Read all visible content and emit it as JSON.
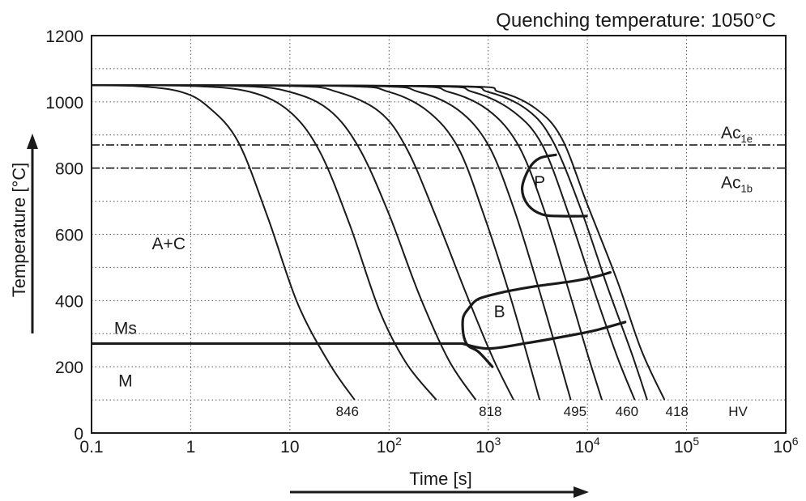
{
  "chart_data": {
    "type": "line",
    "title": "Quenching temperature: 1050°C",
    "xlabel": "Time [s]",
    "ylabel": "Temperature [°C]",
    "x_scale": "log",
    "xlim": [
      0.1,
      1000000
    ],
    "ylim": [
      0,
      1200
    ],
    "x_ticks": [
      {
        "value": 0.1,
        "base": "0.1",
        "exp": ""
      },
      {
        "value": 1,
        "base": "1",
        "exp": ""
      },
      {
        "value": 10,
        "base": "10",
        "exp": ""
      },
      {
        "value": 100,
        "base": "10",
        "exp": "2"
      },
      {
        "value": 1000,
        "base": "10",
        "exp": "3"
      },
      {
        "value": 10000,
        "base": "10",
        "exp": "4"
      },
      {
        "value": 100000,
        "base": "10",
        "exp": "5"
      },
      {
        "value": 1000000,
        "base": "10",
        "exp": "6"
      }
    ],
    "y_ticks": [
      0,
      200,
      400,
      600,
      800,
      1000,
      1200
    ],
    "grid": "dotted",
    "reference_lines": [
      {
        "label": "Ac",
        "sub": "1e",
        "y": 870
      },
      {
        "label": "Ac",
        "sub": "1b",
        "y": 800
      },
      {
        "label": "Ms",
        "sub": "",
        "y": 270
      }
    ],
    "cooling_curves": [
      {
        "points": [
          [
            0.1,
            1050
          ],
          [
            0.3,
            1047
          ],
          [
            0.8,
            1030
          ],
          [
            1.5,
            985
          ],
          [
            3,
            880
          ],
          [
            6,
            650
          ],
          [
            12,
            390
          ],
          [
            25,
            210
          ],
          [
            45,
            100
          ]
        ]
      },
      {
        "points": [
          [
            0.1,
            1050
          ],
          [
            1,
            1048
          ],
          [
            4,
            1030
          ],
          [
            10,
            970
          ],
          [
            20,
            850
          ],
          [
            40,
            630
          ],
          [
            80,
            370
          ],
          [
            150,
            210
          ],
          [
            300,
            100
          ]
        ]
      },
      {
        "points": [
          [
            0.1,
            1050
          ],
          [
            3,
            1048
          ],
          [
            10,
            1030
          ],
          [
            25,
            975
          ],
          [
            50,
            860
          ],
          [
            100,
            660
          ],
          [
            200,
            420
          ],
          [
            400,
            220
          ],
          [
            750,
            100
          ]
        ]
      },
      {
        "points": [
          [
            0.1,
            1050
          ],
          [
            10,
            1048
          ],
          [
            30,
            1030
          ],
          [
            80,
            970
          ],
          [
            150,
            860
          ],
          [
            300,
            650
          ],
          [
            600,
            420
          ],
          [
            1100,
            230
          ],
          [
            1800,
            100
          ]
        ]
      },
      {
        "points": [
          [
            0.1,
            1050
          ],
          [
            30,
            1048
          ],
          [
            100,
            1030
          ],
          [
            250,
            970
          ],
          [
            500,
            860
          ],
          [
            900,
            660
          ],
          [
            1600,
            430
          ],
          [
            2500,
            230
          ],
          [
            3300,
            100
          ]
        ]
      },
      {
        "points": [
          [
            0.1,
            1050
          ],
          [
            60,
            1048
          ],
          [
            200,
            1030
          ],
          [
            500,
            975
          ],
          [
            1000,
            870
          ],
          [
            1800,
            680
          ],
          [
            3200,
            440
          ],
          [
            5000,
            240
          ],
          [
            6800,
            100
          ]
        ]
      },
      {
        "points": [
          [
            0.1,
            1050
          ],
          [
            120,
            1048
          ],
          [
            400,
            1030
          ],
          [
            1000,
            975
          ],
          [
            2000,
            870
          ],
          [
            3600,
            680
          ],
          [
            6500,
            430
          ],
          [
            10000,
            240
          ],
          [
            14000,
            100
          ]
        ]
      },
      {
        "points": [
          [
            0.1,
            1050
          ],
          [
            200,
            1048
          ],
          [
            700,
            1030
          ],
          [
            1800,
            970
          ],
          [
            3500,
            870
          ],
          [
            6500,
            660
          ],
          [
            12000,
            420
          ],
          [
            20000,
            230
          ],
          [
            30000,
            100
          ]
        ]
      },
      {
        "points": [
          [
            0.1,
            1050
          ],
          [
            300,
            1048
          ],
          [
            1000,
            1030
          ],
          [
            2500,
            975
          ],
          [
            4500,
            880
          ],
          [
            8500,
            680
          ],
          [
            16000,
            440
          ],
          [
            28000,
            240
          ],
          [
            40000,
            100
          ]
        ]
      },
      {
        "points": [
          [
            0.1,
            1050
          ],
          [
            400,
            1048
          ],
          [
            1300,
            1030
          ],
          [
            3000,
            980
          ],
          [
            5500,
            890
          ],
          [
            10000,
            690
          ],
          [
            20000,
            460
          ],
          [
            35000,
            250
          ],
          [
            60000,
            100
          ]
        ]
      }
    ],
    "transformation_regions": [
      {
        "label": "P",
        "at": [
          3300,
          740
        ]
      },
      {
        "label": "B",
        "at": [
          1300,
          350
        ]
      }
    ],
    "pearlite_boundary": [
      [
        4800,
        840
      ],
      [
        3300,
        830
      ],
      [
        2600,
        800
      ],
      [
        2200,
        740
      ],
      [
        2500,
        690
      ],
      [
        3500,
        660
      ],
      [
        5500,
        655
      ],
      [
        9800,
        655
      ]
    ],
    "bainite_start": [
      [
        650,
        380
      ],
      [
        800,
        405
      ],
      [
        1400,
        425
      ],
      [
        3000,
        443
      ],
      [
        7000,
        458
      ],
      [
        12000,
        472
      ],
      [
        17000,
        485
      ]
    ],
    "bainite_finish": [
      [
        550,
        270
      ],
      [
        1000,
        255
      ],
      [
        2500,
        272
      ],
      [
        6000,
        292
      ],
      [
        12000,
        310
      ],
      [
        24000,
        335
      ]
    ],
    "bainite_left": [
      [
        650,
        380
      ],
      [
        560,
        350
      ],
      [
        560,
        300
      ],
      [
        620,
        265
      ],
      [
        800,
        245
      ],
      [
        1100,
        200
      ]
    ],
    "phase_labels": [
      {
        "label": "A+C",
        "at": [
          0.6,
          555
        ]
      },
      {
        "label": "Ms",
        "at": [
          0.22,
          300
        ]
      },
      {
        "label": "M",
        "at": [
          0.22,
          140
        ]
      }
    ],
    "hardness_labels": [
      {
        "label": "846",
        "x": 38
      },
      {
        "label": "818",
        "x": 1050
      },
      {
        "label": "495",
        "x": 7500
      },
      {
        "label": "460",
        "x": 25000
      },
      {
        "label": "418",
        "x": 80000
      },
      {
        "label": "HV",
        "x": 330000
      }
    ]
  }
}
